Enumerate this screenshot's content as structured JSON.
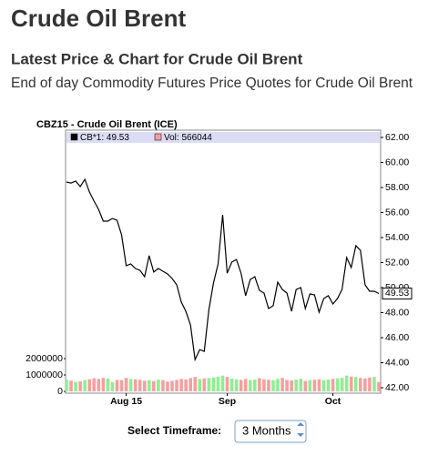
{
  "header": {
    "title": "Crude Oil Brent",
    "subtitle": "Latest Price & Chart for Crude Oil Brent",
    "description": "End of day Commodity Futures Price Quotes for Crude Oil Brent"
  },
  "chart_data": {
    "type": "line",
    "title": "CBZ15 - Crude Oil Brent (ICE)",
    "categories": [
      null,
      null,
      null,
      null,
      null,
      null,
      null,
      null,
      null,
      null,
      null,
      null,
      null,
      "Aug 15",
      null,
      null,
      null,
      null,
      null,
      null,
      null,
      null,
      null,
      null,
      null,
      null,
      null,
      null,
      null,
      null,
      null,
      null,
      null,
      null,
      null,
      "Sep",
      null,
      null,
      null,
      null,
      null,
      null,
      null,
      null,
      null,
      null,
      null,
      null,
      null,
      null,
      null,
      null,
      null,
      null,
      null,
      null,
      null,
      null,
      "Oct",
      null,
      null,
      null,
      null,
      null,
      null,
      null,
      null,
      null,
      null
    ],
    "series": [
      {
        "name": "CB*1: 49.53",
        "color": "#000000",
        "values": [
          58.44,
          58.36,
          58.51,
          58.07,
          58.65,
          57.64,
          56.91,
          56.25,
          55.31,
          55.31,
          55.53,
          55.38,
          54.22,
          51.75,
          51.89,
          51.53,
          51.38,
          50.87,
          52.55,
          51.24,
          51.53,
          51.31,
          51.09,
          50.73,
          50.22,
          48.84,
          48.11,
          47.02,
          44.25,
          45.05,
          44.91,
          48.25,
          50.36,
          51.89,
          55.82,
          51.16,
          52.04,
          52.25,
          51.16,
          49.35,
          50.65,
          50.87,
          49.78,
          49.56,
          48.33,
          48.55,
          50.44,
          49.85,
          49.56,
          48.11,
          49.85,
          50.0,
          48.33,
          49.49,
          49.42,
          48.04,
          49.13,
          49.35,
          48.69,
          49.13,
          49.85,
          52.4,
          51.6,
          53.35,
          52.98,
          50.22,
          49.71,
          49.71,
          49.53
        ]
      },
      {
        "name": "Vol: 566044",
        "color": "#f4a0a0",
        "axis": "y2",
        "values": [
          720000,
          650000,
          580000,
          610000,
          690000,
          740000,
          800000,
          760000,
          820000,
          780000,
          560000,
          700000,
          690000,
          820000,
          760000,
          740000,
          710000,
          650000,
          680000,
          630000,
          720000,
          690000,
          600000,
          640000,
          700000,
          760000,
          730000,
          810000,
          880000,
          760000,
          790000,
          820000,
          850000,
          900000,
          960000,
          880000,
          780000,
          740000,
          700000,
          760000,
          690000,
          720000,
          800000,
          740000,
          710000,
          680000,
          760000,
          820000,
          700000,
          660000,
          720000,
          770000,
          640000,
          690000,
          710000,
          740000,
          680000,
          720000,
          760000,
          790000,
          830000,
          960000,
          900000,
          880000,
          820000,
          790000,
          850000,
          880000,
          566044
        ]
      }
    ],
    "up_color": "#90ee90",
    "down_color": "#f4a0a0",
    "ylim": [
      42,
      62
    ],
    "yticks": [
      {
        "value": 42,
        "label": "42.00"
      },
      {
        "value": 44,
        "label": "44.00"
      },
      {
        "value": 46,
        "label": "46.00"
      },
      {
        "value": 48,
        "label": "48.00"
      },
      {
        "value": 50,
        "label": "50.00"
      },
      {
        "value": 52,
        "label": "52.00"
      },
      {
        "value": 54,
        "label": "54.00"
      },
      {
        "value": 56,
        "label": "56.00"
      },
      {
        "value": 58,
        "label": "58.00"
      },
      {
        "value": 60,
        "label": "60.00"
      },
      {
        "value": 62,
        "label": "62.00"
      }
    ],
    "y2lim": [
      0,
      2000000
    ],
    "y2ticks": [
      0,
      1000000,
      2000000
    ],
    "legend_background": "#dcdcf5"
  },
  "controls": {
    "timeframe_label": "Select Timeframe:",
    "timeframe_value": "3 Months"
  }
}
